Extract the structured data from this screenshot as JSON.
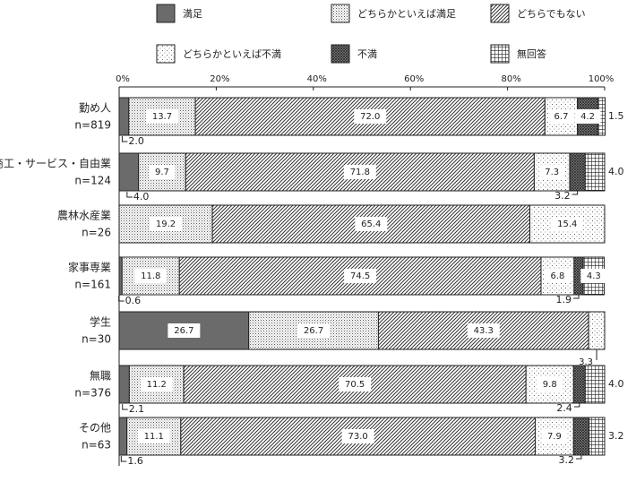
{
  "chart_data": {
    "type": "bar",
    "orientation": "horizontal",
    "stacked": true,
    "percent": true,
    "xlim": [
      0,
      100
    ],
    "x_ticks": [
      "0%",
      "20%",
      "40%",
      "60%",
      "80%",
      "100%"
    ],
    "legend_position": "top",
    "categories": [
      {
        "label": "勤め人",
        "n": "n=819"
      },
      {
        "label": "商工・サービス・自由業",
        "n": "n=124"
      },
      {
        "label": "農林水産業",
        "n": "n=26"
      },
      {
        "label": "家事専業",
        "n": "n=161"
      },
      {
        "label": "学生",
        "n": "n=30"
      },
      {
        "label": "無職",
        "n": "n=376"
      },
      {
        "label": "その他",
        "n": "n=63"
      }
    ],
    "series": [
      {
        "name": "満足",
        "pattern": "solid-gray",
        "values": [
          2.0,
          4.0,
          0.0,
          0.6,
          26.7,
          2.1,
          1.6
        ]
      },
      {
        "name": "どちらかといえば満足",
        "pattern": "dense-dots",
        "values": [
          13.7,
          9.7,
          19.2,
          11.8,
          26.7,
          11.2,
          11.1
        ]
      },
      {
        "name": "どちらでもない",
        "pattern": "diagonal-lines",
        "values": [
          72.0,
          71.8,
          65.4,
          74.5,
          43.3,
          70.5,
          73.0
        ]
      },
      {
        "name": "どちらかといえば不満",
        "pattern": "sparse-dots",
        "values": [
          6.7,
          7.3,
          15.4,
          6.8,
          3.3,
          9.8,
          7.9
        ]
      },
      {
        "name": "不満",
        "pattern": "crosshatch",
        "values": [
          4.2,
          3.2,
          0.0,
          1.9,
          0.0,
          2.4,
          3.2
        ]
      },
      {
        "name": "無回答",
        "pattern": "grid",
        "values": [
          1.5,
          4.0,
          0.0,
          4.3,
          0.0,
          4.0,
          3.2
        ]
      }
    ]
  }
}
